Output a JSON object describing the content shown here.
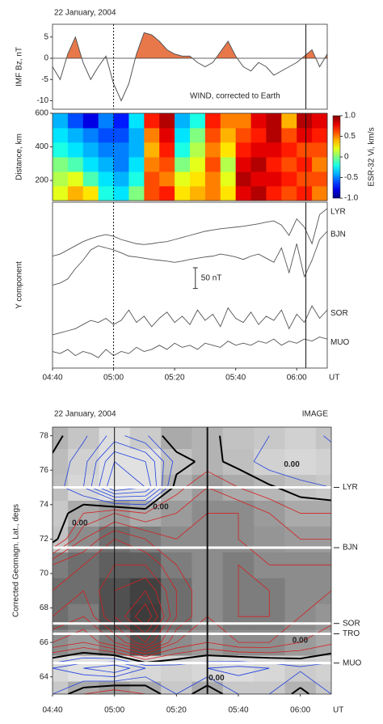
{
  "chart_data": [
    {
      "type": "line",
      "title": "22 January, 2004",
      "ylabel": "IMF Bz, nT",
      "annotation": "WIND, corrected to Earth",
      "xlim": [
        0,
        90
      ],
      "ylim": [
        -12,
        8
      ],
      "yticks": [
        5,
        0,
        -5,
        -10
      ],
      "x": [
        0,
        2.5,
        5,
        7.5,
        10,
        12.5,
        15,
        17.5,
        20,
        22.5,
        25,
        27.5,
        30,
        32.5,
        35,
        37.5,
        40,
        42.5,
        45,
        47.5,
        50,
        52.5,
        55,
        57.5,
        60,
        62.5,
        65,
        67.5,
        70,
        72.5,
        75,
        77.5,
        80,
        82.5,
        85,
        87.5,
        90
      ],
      "values": [
        -2,
        -5,
        1,
        5,
        -1,
        -5,
        -2,
        0.5,
        -6,
        -10,
        -6,
        1,
        6,
        5.5,
        4,
        2,
        1,
        0.5,
        0.5,
        -1,
        -2,
        -1,
        1.5,
        4,
        0.5,
        -2,
        -3,
        -1,
        -2,
        -4,
        -3,
        -2,
        -1,
        0.5,
        2,
        -2,
        1
      ],
      "color": "#555555",
      "positive_fill": "#e8784a",
      "markers": [
        {
          "x": 20,
          "style": "dashed"
        },
        {
          "x": 83,
          "style": "solid"
        }
      ]
    },
    {
      "type": "heatmap",
      "ylabel": "Distance, km",
      "colorbar_label": "ESR-32 Vi, km/s",
      "xlim": [
        0,
        90
      ],
      "ylim": [
        80,
        600
      ],
      "yticks": [
        200,
        400,
        600
      ],
      "x_bins": [
        0,
        5,
        10,
        15,
        20,
        25,
        30,
        35,
        40,
        45,
        50,
        55,
        60,
        65,
        70,
        75,
        80,
        85,
        90
      ],
      "y_bins": [
        80,
        167,
        253,
        340,
        427,
        513,
        600
      ],
      "z": [
        [
          0.2,
          0.4,
          0.3,
          -0.2,
          -0.3,
          0.0,
          0.6,
          0.7,
          0.3,
          0.4,
          0.5,
          0.3,
          0.8,
          0.9,
          0.7,
          0.6,
          0.7,
          0.5
        ],
        [
          0.1,
          0.2,
          -0.1,
          -0.3,
          -0.4,
          -0.2,
          0.6,
          0.5,
          0.2,
          0.3,
          0.5,
          0.2,
          0.9,
          0.8,
          0.8,
          0.7,
          0.6,
          0.6
        ],
        [
          0.0,
          -0.1,
          -0.3,
          -0.4,
          -0.5,
          -0.3,
          0.5,
          0.6,
          0.0,
          0.2,
          0.6,
          0.1,
          0.8,
          0.9,
          0.7,
          0.6,
          0.7,
          0.5
        ],
        [
          -0.2,
          -0.3,
          -0.4,
          -0.5,
          -0.5,
          -0.4,
          0.4,
          0.7,
          -0.2,
          0.1,
          0.5,
          0.3,
          0.7,
          0.8,
          0.8,
          0.7,
          0.6,
          0.6
        ],
        [
          -0.3,
          -0.4,
          -0.5,
          -0.6,
          -0.6,
          -0.4,
          0.5,
          0.8,
          -0.3,
          0.0,
          0.6,
          0.4,
          0.6,
          0.7,
          0.9,
          0.6,
          0.8,
          0.7
        ],
        [
          -0.4,
          -0.6,
          -0.8,
          -0.5,
          -0.7,
          -0.3,
          0.7,
          0.9,
          -0.4,
          -0.2,
          0.7,
          0.5,
          0.5,
          0.8,
          0.9,
          0.4,
          0.9,
          0.8
        ]
      ],
      "clim": [
        -1,
        1
      ],
      "cticks": [
        {
          "value": 1,
          "label": "1.0"
        },
        {
          "value": 0.5,
          "label": "0.5"
        },
        0,
        {
          "value": -0.5,
          "label": "-0.5"
        },
        {
          "value": -1,
          "label": "-1.0"
        }
      ],
      "markers": [
        {
          "x": 20,
          "style": "dashed"
        },
        {
          "x": 83,
          "style": "solid"
        }
      ]
    },
    {
      "type": "multiline",
      "ylabel": "Y component",
      "xlabel": "UT",
      "xlim": [
        0,
        90
      ],
      "ylim": [
        0,
        400
      ],
      "xticks": [
        {
          "value": 0,
          "label": "04:40"
        },
        {
          "value": 20,
          "label": "05:00"
        },
        {
          "value": 40,
          "label": "05:20"
        },
        {
          "value": 60,
          "label": "05:40"
        },
        {
          "value": 80,
          "label": "06:00"
        }
      ],
      "x": [
        0,
        2.5,
        5,
        7.5,
        10,
        12.5,
        15,
        17.5,
        20,
        22.5,
        25,
        27.5,
        30,
        32.5,
        35,
        37.5,
        40,
        42.5,
        45,
        47.5,
        50,
        52.5,
        55,
        57.5,
        60,
        62.5,
        65,
        67.5,
        70,
        72.5,
        75,
        77.5,
        80,
        82.5,
        85,
        87.5,
        90
      ],
      "series": [
        {
          "name": "LYR",
          "color": "#555555",
          "values": [
            270,
            275,
            285,
            295,
            305,
            312,
            318,
            322,
            318,
            310,
            305,
            300,
            298,
            300,
            303,
            305,
            310,
            315,
            320,
            325,
            330,
            333,
            336,
            338,
            340,
            342,
            345,
            348,
            352,
            355,
            345,
            320,
            360,
            340,
            300,
            370,
            385
          ]
        },
        {
          "name": "BJN",
          "color": "#555555",
          "values": [
            200,
            205,
            215,
            240,
            260,
            285,
            295,
            290,
            285,
            278,
            270,
            268,
            265,
            262,
            260,
            258,
            255,
            258,
            262,
            265,
            268,
            270,
            275,
            272,
            268,
            262,
            270,
            275,
            265,
            255,
            290,
            230,
            300,
            220,
            260,
            310,
            330
          ]
        },
        {
          "name": "SOR",
          "color": "#555555",
          "values": [
            80,
            85,
            90,
            95,
            105,
            115,
            110,
            120,
            105,
            115,
            140,
            110,
            125,
            100,
            120,
            135,
            110,
            125,
            105,
            140,
            115,
            130,
            100,
            145,
            120,
            110,
            135,
            105,
            125,
            115,
            140,
            95,
            130,
            110,
            150,
            120,
            140
          ]
        },
        {
          "name": "MUO",
          "color": "#555555",
          "values": [
            40,
            35,
            45,
            30,
            40,
            35,
            25,
            45,
            30,
            40,
            35,
            50,
            40,
            45,
            55,
            45,
            60,
            50,
            55,
            45,
            60,
            55,
            50,
            65,
            55,
            60,
            55,
            65,
            60,
            70,
            55,
            65,
            60,
            70,
            65,
            75,
            70
          ]
        }
      ],
      "scale_bar": {
        "value": 50,
        "label": "50 nT"
      },
      "markers": [
        {
          "x": 20,
          "style": "dashed"
        },
        {
          "x": 83,
          "style": "solid"
        }
      ]
    },
    {
      "type": "contour",
      "title": "22 January, 2004",
      "source": "IMAGE",
      "ylabel": "Corrected Geomagn. Lat., degs",
      "xlabel": "UT",
      "xlim": [
        0,
        90
      ],
      "ylim": [
        63,
        78.5
      ],
      "xticks": [
        {
          "value": 0,
          "label": "04:40"
        },
        {
          "value": 20,
          "label": "05:00"
        },
        {
          "value": 40,
          "label": "05:20"
        },
        {
          "value": 60,
          "label": "05:40"
        },
        {
          "value": 80,
          "label": "06:00"
        }
      ],
      "yticks": [
        64,
        66,
        68,
        70,
        72,
        74,
        76,
        78
      ],
      "grid_x": [
        0,
        10,
        20,
        30,
        40,
        50,
        60,
        70,
        80,
        90
      ],
      "grid_y": [
        63,
        64.5,
        66,
        67.5,
        69,
        70.5,
        72,
        73.5,
        75,
        76.5,
        78
      ],
      "z": [
        [
          -50,
          50,
          100,
          50,
          -50,
          50,
          -50,
          -50,
          20,
          -50
        ],
        [
          -100,
          -150,
          -200,
          -100,
          -80,
          -100,
          -120,
          -100,
          -60,
          -80
        ],
        [
          150,
          100,
          200,
          350,
          150,
          100,
          150,
          150,
          100,
          60
        ],
        [
          250,
          200,
          350,
          500,
          250,
          150,
          200,
          200,
          150,
          120
        ],
        [
          250,
          250,
          350,
          400,
          250,
          150,
          200,
          200,
          150,
          150
        ],
        [
          200,
          250,
          300,
          300,
          200,
          150,
          200,
          150,
          150,
          150
        ],
        [
          -30,
          150,
          250,
          200,
          150,
          150,
          150,
          120,
          100,
          100
        ],
        [
          -50,
          50,
          100,
          50,
          100,
          150,
          150,
          100,
          50,
          50
        ],
        [
          -20,
          -100,
          -300,
          -250,
          30,
          100,
          50,
          10,
          -30,
          -50
        ],
        [
          -10,
          -80,
          -250,
          -200,
          -30,
          20,
          -20,
          -80,
          -100,
          -80
        ],
        [
          20,
          -40,
          -120,
          -60,
          50,
          20,
          -30,
          -50,
          -80,
          -40
        ]
      ],
      "levels": [
        -250,
        -200,
        -150,
        -100,
        -50,
        0,
        50,
        100,
        150,
        200,
        250,
        300,
        350,
        400,
        450
      ],
      "positive_color": "#d42020",
      "negative_color": "#2040e0",
      "zero_color": "#000000",
      "contour_labels": [
        "0.00",
        "0.00",
        "0.00",
        "0.00",
        "0.00"
      ],
      "stations": [
        {
          "name": "LYR",
          "lat": 75
        },
        {
          "name": "BJN",
          "lat": 71.5
        },
        {
          "name": "SOR",
          "lat": 67.1
        },
        {
          "name": "TRO",
          "lat": 66.5
        },
        {
          "name": "MUO",
          "lat": 64.8
        }
      ],
      "markers": [
        {
          "x": 20,
          "style": "solid"
        },
        {
          "x": 50,
          "style": "thick"
        }
      ]
    }
  ]
}
